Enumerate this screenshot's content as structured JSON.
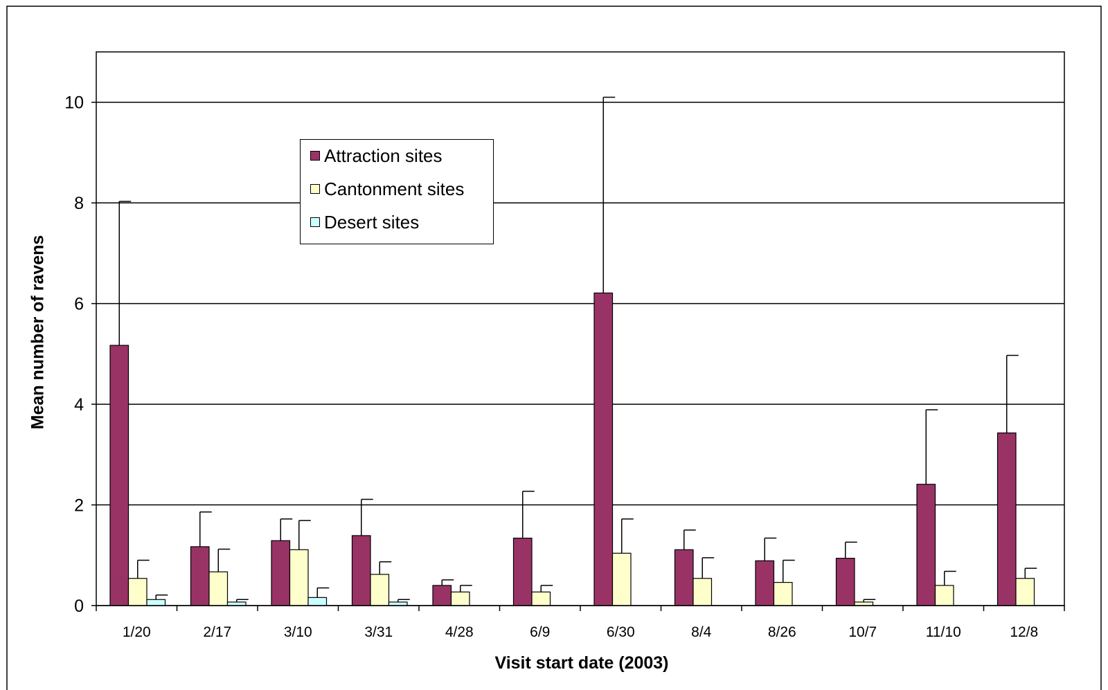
{
  "chart_data": {
    "type": "bar",
    "title": "",
    "xlabel": "Visit start date (2003)",
    "ylabel": "Mean number of ravens",
    "ylim": [
      0,
      11
    ],
    "yticks": [
      0,
      2,
      4,
      6,
      8,
      10
    ],
    "grid": true,
    "legend_position": "top-left",
    "categories": [
      "1/20",
      "2/17",
      "3/10",
      "3/31",
      "4/28",
      "6/9",
      "6/30",
      "8/4",
      "8/26",
      "10/7",
      "11/10",
      "12/8"
    ],
    "series": [
      {
        "name": "Attraction sites",
        "color": "#993366",
        "values": [
          5.17,
          1.17,
          1.29,
          1.39,
          0.4,
          1.34,
          6.21,
          1.11,
          0.89,
          0.94,
          2.41,
          3.43
        ],
        "error_upper": [
          8.03,
          1.86,
          1.72,
          2.11,
          0.51,
          2.27,
          10.1,
          1.5,
          1.34,
          1.26,
          3.89,
          4.97
        ]
      },
      {
        "name": "Cantonment sites",
        "color": "#ffffcc",
        "values": [
          0.54,
          0.67,
          1.11,
          0.62,
          0.27,
          0.27,
          1.04,
          0.54,
          0.46,
          0.07,
          0.4,
          0.54
        ],
        "error_upper": [
          0.9,
          1.12,
          1.69,
          0.87,
          0.4,
          0.4,
          1.72,
          0.95,
          0.9,
          0.12,
          0.68,
          0.74
        ]
      },
      {
        "name": "Desert sites",
        "color": "#ccffff",
        "values": [
          0.12,
          0.07,
          0.16,
          0.07,
          0,
          0,
          0,
          0,
          0,
          0,
          0,
          0
        ],
        "error_upper": [
          0.21,
          0.12,
          0.35,
          0.12,
          0,
          0,
          0,
          0,
          0,
          0,
          0,
          0
        ]
      }
    ]
  }
}
